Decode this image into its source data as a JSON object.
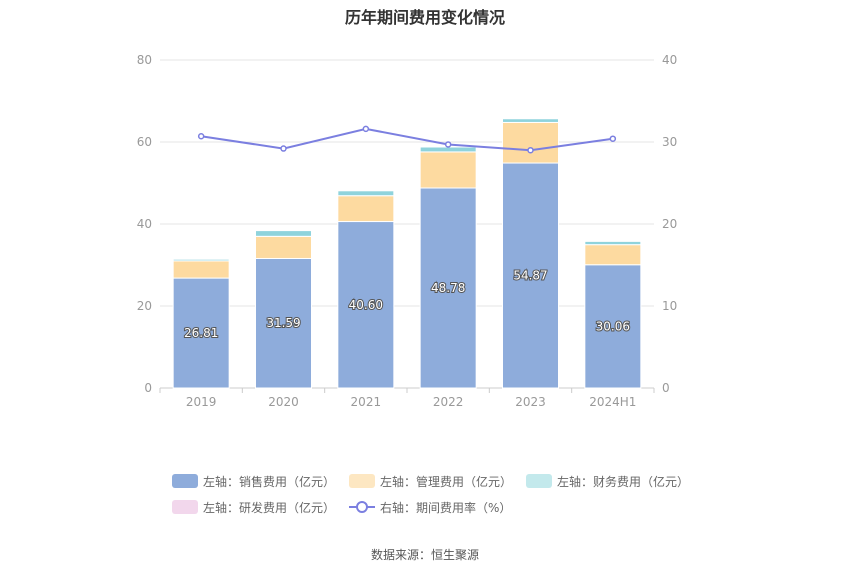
{
  "chart_data": {
    "type": "bar",
    "title": "历年期间费用变化情况",
    "categories": [
      "2019",
      "2020",
      "2021",
      "2022",
      "2023",
      "2024H1"
    ],
    "ylim_left": [
      0,
      80
    ],
    "ylim_right": [
      0,
      40
    ],
    "left_ticks": [
      "0",
      "20",
      "40",
      "60",
      "80"
    ],
    "right_ticks": [
      "0",
      "10",
      "20",
      "30",
      "40"
    ],
    "stacked": true,
    "grid": true,
    "legend_position": "bottom",
    "series": [
      {
        "name": "左轴：销售费用（亿元）",
        "axis": "left",
        "color": "#8eacdb",
        "values": [
          26.81,
          31.59,
          40.6,
          48.78,
          54.87,
          30.06
        ],
        "labels": [
          "26.81",
          "31.59",
          "40.60",
          "48.78",
          "54.87",
          "30.06"
        ]
      },
      {
        "name": "左轴：管理费用（亿元）",
        "axis": "left",
        "color": "#fddaa0",
        "values": [
          4.2,
          5.4,
          6.3,
          8.8,
          9.9,
          4.9
        ]
      },
      {
        "name": "左轴：财务费用（亿元）",
        "axis": "left",
        "color": "#8fd3dc",
        "values": [
          0.4,
          1.4,
          1.2,
          1.2,
          0.9,
          0.8
        ]
      },
      {
        "name": "左轴：研发费用（亿元）",
        "axis": "left",
        "color": "#f2d7ec",
        "values": [
          0,
          0,
          0,
          0,
          0,
          0
        ]
      },
      {
        "name": "右轴：期间费用率（%）",
        "axis": "right",
        "type": "line",
        "color": "#7b7fe0",
        "values": [
          30.7,
          29.2,
          31.6,
          29.7,
          29.0,
          30.4
        ]
      }
    ],
    "source": "数据来源：恒生聚源"
  }
}
